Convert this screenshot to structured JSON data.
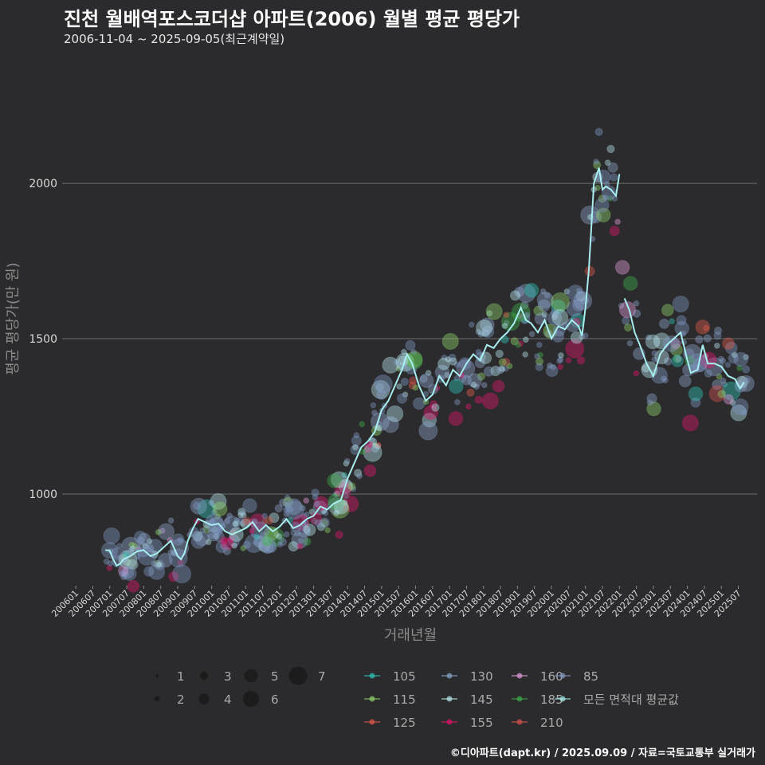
{
  "title": "진천 월배역포스코더샵 아파트(2006) 월별 평균 평당가",
  "subtitle": "2006-11-04 ~ 2025-09-05(최근계약일)",
  "caption": "©디아파트(dapt.kr) / 2025.09.09 / 자료=국토교통부 실거래가",
  "chart_data": {
    "type": "scatter",
    "title": "진천 월배역포스코더샵 아파트(2006) 월별 평균 평당가",
    "xlabel": "거래년월",
    "ylabel": "평균 평당가(만 원)",
    "ylim": [
      705,
      2385
    ],
    "yticks": [
      1000,
      1500,
      2000
    ],
    "xticks": [
      "200601",
      "200607",
      "200701",
      "200707",
      "200801",
      "200807",
      "200901",
      "200907",
      "201001",
      "201007",
      "201101",
      "201107",
      "201201",
      "201207",
      "201301",
      "201307",
      "201401",
      "201407",
      "201501",
      "201507",
      "201601",
      "201607",
      "201701",
      "201707",
      "201801",
      "201807",
      "201901",
      "201907",
      "202001",
      "202007",
      "202101",
      "202107",
      "202201",
      "202207",
      "202301",
      "202307",
      "202401",
      "202407",
      "202501",
      "202507"
    ],
    "size_legend": {
      "values": [
        "1",
        "2",
        "3",
        "4",
        "5",
        "6",
        "7"
      ]
    },
    "series_legend": [
      {
        "name": "105",
        "color": "#2ec4b6"
      },
      {
        "name": "115",
        "color": "#8fd16a"
      },
      {
        "name": "125",
        "color": "#e05a4b"
      },
      {
        "name": "130",
        "color": "#8aa2c8"
      },
      {
        "name": "145",
        "color": "#b8e8ee"
      },
      {
        "name": "155",
        "color": "#e0156b"
      },
      {
        "name": "160",
        "color": "#e39ad8"
      },
      {
        "name": "185",
        "color": "#3fae49"
      },
      {
        "name": "210",
        "color": "#d9534f"
      },
      {
        "name": "85",
        "color": "#7f97c0"
      },
      {
        "name": "모든 면적대 평균값",
        "color": "#a8eef0"
      }
    ],
    "average_series": {
      "name": "모든 면적대 평균값",
      "x": [
        2006.87,
        2007.0,
        2007.1,
        2007.2,
        2007.3,
        2007.4,
        2007.6,
        2007.8,
        2008.0,
        2008.2,
        2008.4,
        2008.6,
        2008.8,
        2009.0,
        2009.1,
        2009.2,
        2009.3,
        2009.45,
        2009.6,
        2009.8,
        2010.0,
        2010.2,
        2010.4,
        2010.6,
        2010.8,
        2011.0,
        2011.2,
        2011.4,
        2011.6,
        2011.8,
        2012.0,
        2012.2,
        2012.4,
        2012.6,
        2012.8,
        2013.0,
        2013.2,
        2013.4,
        2013.6,
        2013.8,
        2014.0,
        2014.2,
        2014.4,
        2014.6,
        2014.8,
        2015.0,
        2015.2,
        2015.4,
        2015.6,
        2015.75,
        2015.9,
        2016.1,
        2016.3,
        2016.5,
        2016.7,
        2016.9,
        2017.1,
        2017.3,
        2017.5,
        2017.7,
        2017.9,
        2018.1,
        2018.3,
        2018.5,
        2018.7,
        2018.9,
        2019.1,
        2019.25,
        2019.4,
        2019.6,
        2019.8,
        2020.0,
        2020.2,
        2020.4,
        2020.6,
        2020.8,
        2020.9,
        2021.0,
        2021.1,
        2021.25,
        2021.4,
        2021.5,
        2021.6,
        2021.75,
        2021.9,
        2022.0
      ],
      "y": [
        820,
        818,
        790,
        770,
        775,
        790,
        800,
        815,
        820,
        800,
        810,
        830,
        850,
        800,
        790,
        810,
        850,
        890,
        920,
        910,
        900,
        905,
        880,
        870,
        880,
        890,
        910,
        880,
        900,
        880,
        895,
        920,
        890,
        900,
        920,
        930,
        960,
        950,
        970,
        980,
        1050,
        1100,
        1150,
        1170,
        1200,
        1270,
        1300,
        1350,
        1400,
        1450,
        1420,
        1350,
        1300,
        1320,
        1380,
        1350,
        1400,
        1380,
        1420,
        1450,
        1430,
        1480,
        1470,
        1500,
        1520,
        1550,
        1600,
        1560,
        1550,
        1520,
        1560,
        1500,
        1540,
        1530,
        1560,
        1540,
        1510,
        1600,
        1720,
        2000,
        2050,
        1980,
        1990,
        1980,
        1960,
        2030
      ]
    },
    "average_series_2": {
      "x": [
        2022.15,
        2022.3,
        2022.45,
        2022.6,
        2022.8,
        2023.0,
        2023.2,
        2023.4,
        2023.6,
        2023.8,
        2024.0,
        2024.1,
        2024.3,
        2024.45,
        2024.6,
        2024.8,
        2025.0,
        2025.2,
        2025.4,
        2025.55,
        2025.67
      ],
      "y": [
        1630,
        1590,
        1520,
        1480,
        1420,
        1380,
        1450,
        1480,
        1500,
        1520,
        1430,
        1390,
        1400,
        1480,
        1420,
        1420,
        1410,
        1380,
        1370,
        1340,
        1360
      ]
    }
  }
}
